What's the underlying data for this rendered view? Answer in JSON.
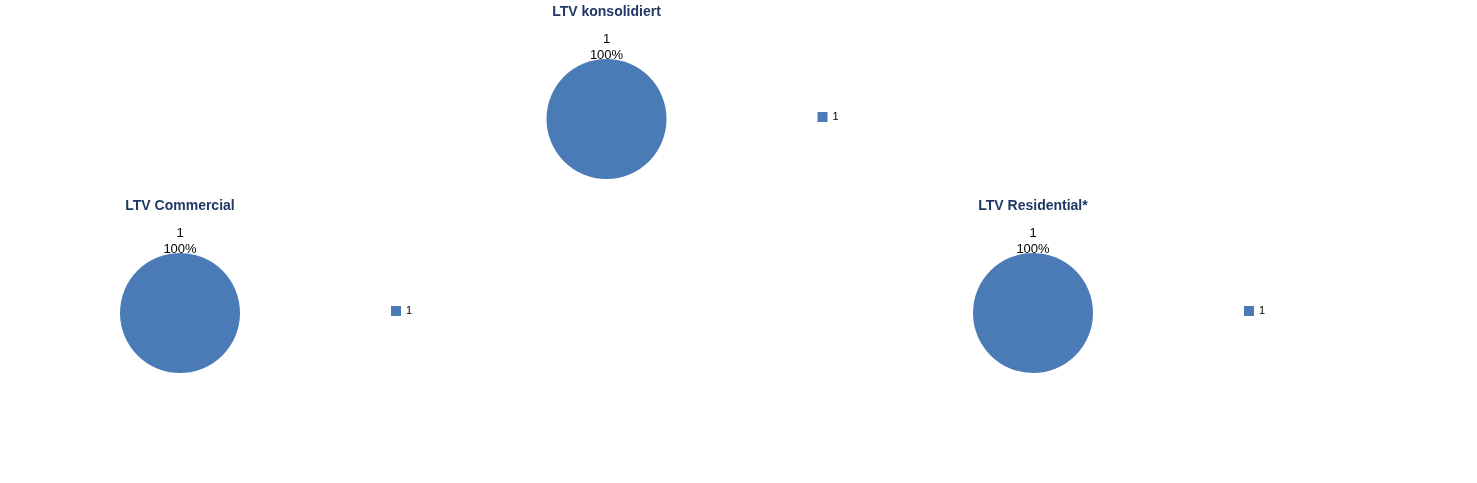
{
  "chart_data": [
    {
      "type": "pie",
      "title": "LTV konsolidiert",
      "categories": [
        "1"
      ],
      "values": [
        100
      ],
      "colors": [
        "#4a7bb7"
      ],
      "value_labels": [
        "100%"
      ],
      "legend": "right"
    },
    {
      "type": "pie",
      "title": "LTV Commercial",
      "categories": [
        "1"
      ],
      "values": [
        100
      ],
      "colors": [
        "#4a7bb7"
      ],
      "value_labels": [
        "100%"
      ],
      "legend": "right"
    },
    {
      "type": "pie",
      "title": "LTV Residential*",
      "categories": [
        "1"
      ],
      "values": [
        100
      ],
      "colors": [
        "#4a7bb7"
      ],
      "value_labels": [
        "100%"
      ],
      "legend": "right"
    }
  ]
}
